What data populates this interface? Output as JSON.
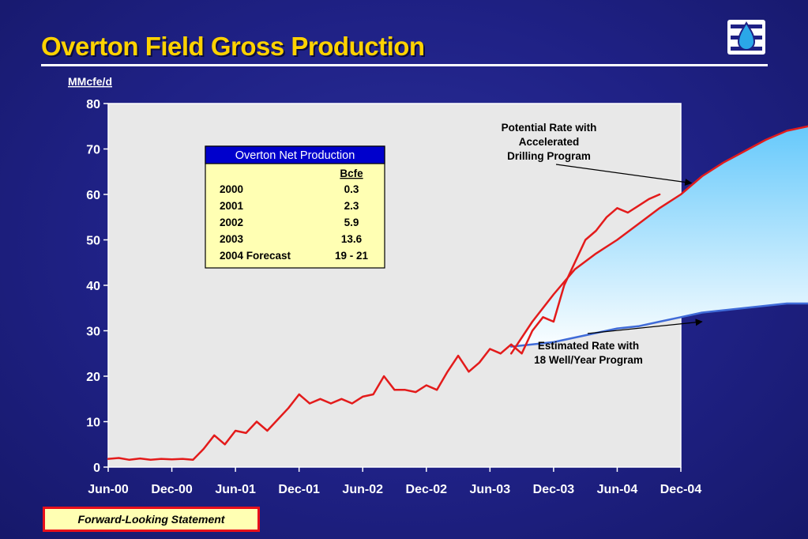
{
  "page": {
    "title": "Overton Field Gross Production",
    "footer_label": "Forward-Looking Statement"
  },
  "colors": {
    "actual": "#e31b1b",
    "accelerated": "#e31b1b",
    "estimated": "#3f6bd8",
    "fill_top": "#66c9fb",
    "fill_bottom": "#ffffff",
    "plot_bg": "#e8e8e8",
    "title": "#ffd200"
  },
  "chart_data": {
    "type": "line",
    "title": "Overton Field Gross Production",
    "ylabel": "MMcfe/d",
    "xlabel": "",
    "ylim": [
      0,
      80
    ],
    "xlim": [
      "Jun-00",
      "Dec-04"
    ],
    "yticks": [
      0,
      10,
      20,
      30,
      40,
      50,
      60,
      70,
      80
    ],
    "xticks": [
      "Jun-00",
      "Dec-00",
      "Jun-01",
      "Dec-01",
      "Jun-02",
      "Dec-02",
      "Jun-03",
      "Dec-03",
      "Jun-04",
      "Dec-04"
    ],
    "grid": false,
    "series": [
      {
        "key": "actual",
        "values": [
          [
            "2000-06",
            1.8
          ],
          [
            "2000-07",
            2.0
          ],
          [
            "2000-08",
            1.6
          ],
          [
            "2000-09",
            1.9
          ],
          [
            "2000-10",
            1.6
          ],
          [
            "2000-11",
            1.8
          ],
          [
            "2000-12",
            1.7
          ],
          [
            "2001-01",
            1.8
          ],
          [
            "2001-02",
            1.6
          ],
          [
            "2001-03",
            4.0
          ],
          [
            "2001-04",
            7.0
          ],
          [
            "2001-05",
            5.0
          ],
          [
            "2001-06",
            8.0
          ],
          [
            "2001-07",
            7.5
          ],
          [
            "2001-08",
            10.0
          ],
          [
            "2001-09",
            8.0
          ],
          [
            "2001-10",
            10.5
          ],
          [
            "2001-11",
            13.0
          ],
          [
            "2001-12",
            16.0
          ],
          [
            "2002-01",
            14.0
          ],
          [
            "2002-02",
            15.0
          ],
          [
            "2002-03",
            14.0
          ],
          [
            "2002-04",
            15.0
          ],
          [
            "2002-05",
            14.0
          ],
          [
            "2002-06",
            15.5
          ],
          [
            "2002-07",
            16.0
          ],
          [
            "2002-08",
            20.0
          ],
          [
            "2002-09",
            17.0
          ],
          [
            "2002-10",
            17.0
          ],
          [
            "2002-11",
            16.5
          ],
          [
            "2002-12",
            18.0
          ],
          [
            "2003-01",
            17.0
          ],
          [
            "2003-02",
            21.0
          ],
          [
            "2003-03",
            24.5
          ],
          [
            "2003-04",
            21.0
          ],
          [
            "2003-05",
            23.0
          ],
          [
            "2003-06",
            26.0
          ],
          [
            "2003-07",
            25.0
          ],
          [
            "2003-08",
            27.0
          ],
          [
            "2003-09",
            25.0
          ],
          [
            "2003-10",
            30.0
          ],
          [
            "2003-11",
            33.0
          ],
          [
            "2003-12",
            32.0
          ],
          [
            "2004-01",
            40.0
          ],
          [
            "2004-02",
            45.0
          ],
          [
            "2004-03",
            50.0
          ],
          [
            "2004-04",
            52.0
          ],
          [
            "2004-05",
            55.0
          ],
          [
            "2004-06",
            57.0
          ],
          [
            "2004-07",
            56.0
          ],
          [
            "2004-08",
            57.5
          ],
          [
            "2004-09",
            59.0
          ],
          [
            "2004-10",
            60.0
          ]
        ]
      },
      {
        "key": "accelerated",
        "label": "Potential Rate with Accelerated Drilling Program",
        "values": [
          [
            "2003-08",
            25.0
          ],
          [
            "2003-10",
            32.0
          ],
          [
            "2003-12",
            38.0
          ],
          [
            "2004-02",
            43.5
          ],
          [
            "2004-04",
            47.0
          ],
          [
            "2004-06",
            50.0
          ],
          [
            "2004-08",
            53.5
          ],
          [
            "2004-10",
            57.0
          ],
          [
            "2004-12",
            60.0
          ],
          [
            "2005-02",
            64.0
          ],
          [
            "2005-04",
            67.0
          ],
          [
            "2005-06",
            69.5
          ],
          [
            "2005-08",
            72.0
          ],
          [
            "2005-10",
            74.0
          ],
          [
            "2005-12",
            75.0
          ]
        ]
      },
      {
        "key": "estimated",
        "label": "Estimated Rate with 18 Well/Year Program",
        "values": [
          [
            "2003-08",
            26.5
          ],
          [
            "2003-10",
            27.0
          ],
          [
            "2003-12",
            27.5
          ],
          [
            "2004-02",
            28.5
          ],
          [
            "2004-04",
            29.5
          ],
          [
            "2004-06",
            30.5
          ],
          [
            "2004-08",
            31.0
          ],
          [
            "2004-10",
            32.0
          ],
          [
            "2004-12",
            33.0
          ],
          [
            "2005-02",
            34.0
          ],
          [
            "2005-04",
            34.5
          ],
          [
            "2005-06",
            35.0
          ],
          [
            "2005-08",
            35.5
          ],
          [
            "2005-10",
            36.0
          ],
          [
            "2005-12",
            36.0
          ]
        ]
      }
    ],
    "annotations": [
      {
        "key": "accelerated",
        "lines": [
          "Potential Rate with",
          "Accelerated",
          "Drilling Program"
        ],
        "arrow_to": [
          "2005-01",
          62.5
        ]
      },
      {
        "key": "estimated",
        "lines": [
          "Estimated Rate with",
          "18 Well/Year Program"
        ],
        "arrow_to": [
          "2005-02",
          32.0
        ]
      }
    ],
    "table": {
      "title": "Overton Net Production",
      "header": [
        "",
        "Bcfe"
      ],
      "rows": [
        [
          "2000",
          "0.3"
        ],
        [
          "2001",
          "2.3"
        ],
        [
          "2002",
          "5.9"
        ],
        [
          "2003",
          "13.6"
        ],
        [
          "2004 Forecast",
          "19 - 21"
        ]
      ]
    }
  }
}
